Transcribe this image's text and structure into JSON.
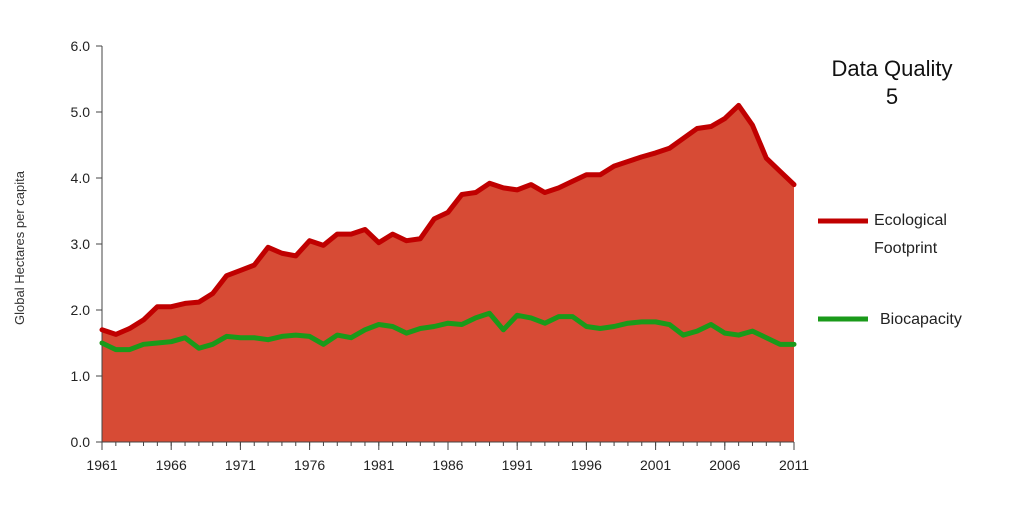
{
  "chart_data": {
    "type": "area",
    "ylabel": "Global Hectares per capita",
    "ylim": [
      0,
      6
    ],
    "y_ticks": [
      "0.0",
      "1.0",
      "2.0",
      "3.0",
      "4.0",
      "5.0",
      "6.0"
    ],
    "x_ticks": [
      "1961",
      "1966",
      "1971",
      "1976",
      "1981",
      "1986",
      "1991",
      "1996",
      "2001",
      "2006",
      "2011"
    ],
    "xlim": [
      1961,
      2011
    ],
    "grid": false,
    "legend_position": "right",
    "annotation": {
      "line1": "Data Quality",
      "line2": "5"
    },
    "x": [
      1961,
      1962,
      1963,
      1964,
      1965,
      1966,
      1967,
      1968,
      1969,
      1970,
      1971,
      1972,
      1973,
      1974,
      1975,
      1976,
      1977,
      1978,
      1979,
      1980,
      1981,
      1982,
      1983,
      1984,
      1985,
      1986,
      1987,
      1988,
      1989,
      1990,
      1991,
      1992,
      1993,
      1994,
      1995,
      1996,
      1997,
      1998,
      1999,
      2000,
      2001,
      2002,
      2003,
      2004,
      2005,
      2006,
      2007,
      2008,
      2009,
      2010,
      2011
    ],
    "series": [
      {
        "name": "Ecological Footprint",
        "legend_label": [
          "Ecological",
          "Footprint"
        ],
        "color": "#c00000",
        "fill": "#d74b35",
        "values": [
          1.7,
          1.63,
          1.72,
          1.85,
          2.05,
          2.05,
          2.1,
          2.12,
          2.25,
          2.52,
          2.6,
          2.68,
          2.95,
          2.86,
          2.82,
          3.05,
          2.98,
          3.15,
          3.15,
          3.22,
          3.02,
          3.15,
          3.05,
          3.08,
          3.38,
          3.48,
          3.75,
          3.78,
          3.92,
          3.85,
          3.82,
          3.9,
          3.78,
          3.85,
          3.95,
          4.05,
          4.05,
          4.18,
          4.25,
          4.32,
          4.38,
          4.45,
          4.6,
          4.75,
          4.78,
          4.9,
          5.1,
          4.8,
          4.3,
          4.1,
          3.9
        ]
      },
      {
        "name": "Biocapacity",
        "legend_label": [
          "Biocapacity"
        ],
        "color": "#1a9a1a",
        "values": [
          1.5,
          1.4,
          1.4,
          1.48,
          1.5,
          1.52,
          1.58,
          1.42,
          1.48,
          1.6,
          1.58,
          1.58,
          1.55,
          1.6,
          1.62,
          1.6,
          1.48,
          1.62,
          1.58,
          1.7,
          1.78,
          1.75,
          1.65,
          1.72,
          1.75,
          1.8,
          1.78,
          1.88,
          1.95,
          1.7,
          1.92,
          1.88,
          1.8,
          1.9,
          1.9,
          1.75,
          1.72,
          1.75,
          1.8,
          1.82,
          1.82,
          1.78,
          1.62,
          1.68,
          1.78,
          1.65,
          1.62,
          1.68,
          1.58,
          1.48,
          1.48
        ]
      }
    ]
  }
}
